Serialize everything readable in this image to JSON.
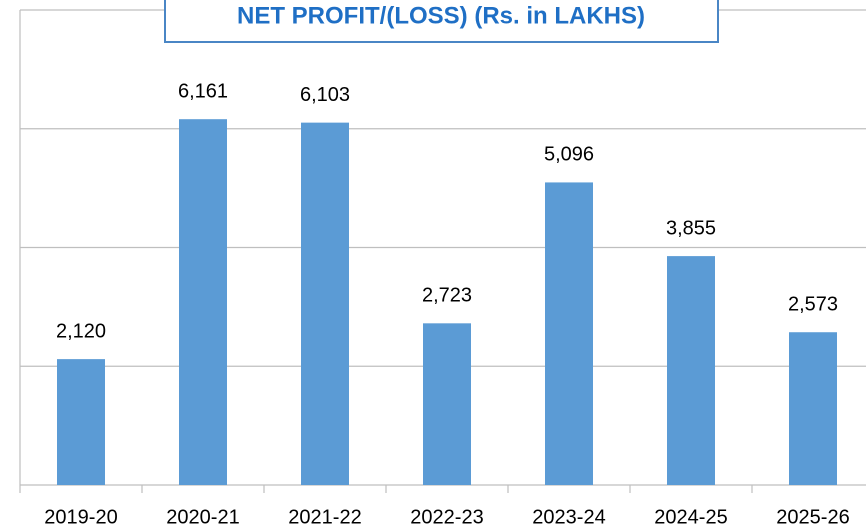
{
  "chart_data": {
    "type": "bar",
    "title": "NET PROFIT/(LOSS) (Rs. in LAKHS)",
    "categories": [
      "2019-20",
      "2020-21",
      "2021-22",
      "2022-23",
      "2023-24",
      "2024-25",
      "2025-26"
    ],
    "values": [
      2120,
      6161,
      6103,
      2723,
      5096,
      3855,
      2573
    ],
    "value_labels": [
      "2,120",
      "6,161",
      "6,103",
      "2,723",
      "5,096",
      "3,855",
      "2,573"
    ],
    "color": "#5b9bd5",
    "ylim": [
      0,
      8000
    ],
    "yticks": [
      0,
      2000,
      4000,
      6000,
      8000
    ],
    "grid": true
  }
}
